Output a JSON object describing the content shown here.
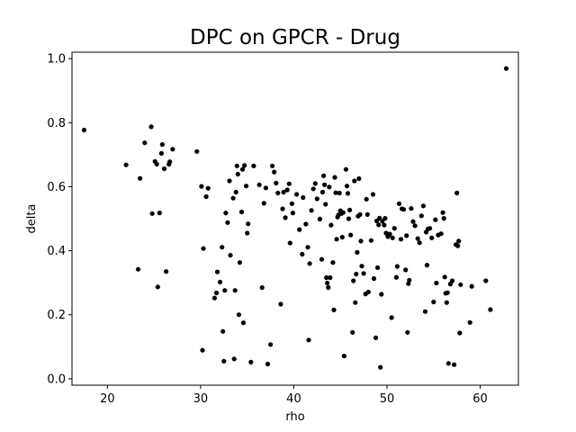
{
  "chart_data": {
    "type": "scatter",
    "title": "DPC on GPCR - Drug",
    "xlabel": "rho",
    "ylabel": "delta",
    "xlim": [
      16.2,
      64.1
    ],
    "ylim": [
      -0.02,
      1.02
    ],
    "xticks": [
      "20",
      "30",
      "40",
      "50",
      "60"
    ],
    "yticks": [
      "0.0",
      "0.2",
      "0.4",
      "0.6",
      "0.8",
      "1.0"
    ],
    "grid": false,
    "marker_color": "#000000",
    "points": [
      [
        17.5,
        0.777
      ],
      [
        22.0,
        0.668
      ],
      [
        23.3,
        0.342
      ],
      [
        23.5,
        0.626
      ],
      [
        24.0,
        0.737
      ],
      [
        24.7,
        0.787
      ],
      [
        24.8,
        0.516
      ],
      [
        25.1,
        0.679
      ],
      [
        25.3,
        0.67
      ],
      [
        25.4,
        0.287
      ],
      [
        25.6,
        0.518
      ],
      [
        25.8,
        0.704
      ],
      [
        25.9,
        0.732
      ],
      [
        26.1,
        0.656
      ],
      [
        26.3,
        0.335
      ],
      [
        26.6,
        0.67
      ],
      [
        26.7,
        0.678
      ],
      [
        27.0,
        0.717
      ],
      [
        29.6,
        0.71
      ],
      [
        30.1,
        0.601
      ],
      [
        30.2,
        0.089
      ],
      [
        30.3,
        0.407
      ],
      [
        30.6,
        0.569
      ],
      [
        30.8,
        0.595
      ],
      [
        31.5,
        0.252
      ],
      [
        31.7,
        0.268
      ],
      [
        31.8,
        0.334
      ],
      [
        32.1,
        0.302
      ],
      [
        32.3,
        0.411
      ],
      [
        32.4,
        0.148
      ],
      [
        32.5,
        0.055
      ],
      [
        32.6,
        0.276
      ],
      [
        32.7,
        0.518
      ],
      [
        32.9,
        0.488
      ],
      [
        33.1,
        0.618
      ],
      [
        33.2,
        0.386
      ],
      [
        33.5,
        0.564
      ],
      [
        33.6,
        0.062
      ],
      [
        33.7,
        0.276
      ],
      [
        33.8,
        0.583
      ],
      [
        33.9,
        0.665
      ],
      [
        34.0,
        0.639
      ],
      [
        34.1,
        0.2
      ],
      [
        34.2,
        0.363
      ],
      [
        34.4,
        0.521
      ],
      [
        34.5,
        0.654
      ],
      [
        34.6,
        0.175
      ],
      [
        34.7,
        0.666
      ],
      [
        34.9,
        0.602
      ],
      [
        35.0,
        0.455
      ],
      [
        35.1,
        0.484
      ],
      [
        35.4,
        0.052
      ],
      [
        35.7,
        0.665
      ],
      [
        36.3,
        0.606
      ],
      [
        36.6,
        0.285
      ],
      [
        36.8,
        0.548
      ],
      [
        37.0,
        0.596
      ],
      [
        37.2,
        0.046
      ],
      [
        37.5,
        0.107
      ],
      [
        37.7,
        0.665
      ],
      [
        37.9,
        0.646
      ],
      [
        38.1,
        0.611
      ],
      [
        38.3,
        0.58
      ],
      [
        38.6,
        0.233
      ],
      [
        38.8,
        0.531
      ],
      [
        38.9,
        0.583
      ],
      [
        39.1,
        0.503
      ],
      [
        39.3,
        0.59
      ],
      [
        39.5,
        0.609
      ],
      [
        39.6,
        0.424
      ],
      [
        39.8,
        0.547
      ],
      [
        39.9,
        0.518
      ],
      [
        40.3,
        0.576
      ],
      [
        40.6,
        0.466
      ],
      [
        40.9,
        0.389
      ],
      [
        41.0,
        0.566
      ],
      [
        41.3,
        0.483
      ],
      [
        41.5,
        0.411
      ],
      [
        41.6,
        0.121
      ],
      [
        41.7,
        0.36
      ],
      [
        41.9,
        0.526
      ],
      [
        42.1,
        0.593
      ],
      [
        42.3,
        0.61
      ],
      [
        42.5,
        0.562
      ],
      [
        42.8,
        0.499
      ],
      [
        43.0,
        0.373
      ],
      [
        43.1,
        0.583
      ],
      [
        43.2,
        0.634
      ],
      [
        43.3,
        0.606
      ],
      [
        43.4,
        0.545
      ],
      [
        43.5,
        0.316
      ],
      [
        43.6,
        0.299
      ],
      [
        43.7,
        0.285
      ],
      [
        43.8,
        0.599
      ],
      [
        43.9,
        0.316
      ],
      [
        44.0,
        0.48
      ],
      [
        44.2,
        0.363
      ],
      [
        44.3,
        0.215
      ],
      [
        44.4,
        0.629
      ],
      [
        44.5,
        0.581
      ],
      [
        44.6,
        0.436
      ],
      [
        44.7,
        0.505
      ],
      [
        44.8,
        0.512
      ],
      [
        44.9,
        0.58
      ],
      [
        45.0,
        0.525
      ],
      [
        45.1,
        0.516
      ],
      [
        45.2,
        0.442
      ],
      [
        45.3,
        0.519
      ],
      [
        45.4,
        0.071
      ],
      [
        45.6,
        0.654
      ],
      [
        45.7,
        0.602
      ],
      [
        45.8,
        0.579
      ],
      [
        45.9,
        0.5
      ],
      [
        46.0,
        0.527
      ],
      [
        46.1,
        0.449
      ],
      [
        46.3,
        0.145
      ],
      [
        46.4,
        0.306
      ],
      [
        46.5,
        0.618
      ],
      [
        46.6,
        0.238
      ],
      [
        46.7,
        0.327
      ],
      [
        46.8,
        0.395
      ],
      [
        46.9,
        0.508
      ],
      [
        47.0,
        0.625
      ],
      [
        47.1,
        0.513
      ],
      [
        47.2,
        0.43
      ],
      [
        47.3,
        0.352
      ],
      [
        47.5,
        0.329
      ],
      [
        47.7,
        0.265
      ],
      [
        47.8,
        0.561
      ],
      [
        47.9,
        0.513
      ],
      [
        48.0,
        0.271
      ],
      [
        48.3,
        0.432
      ],
      [
        48.5,
        0.576
      ],
      [
        48.6,
        0.313
      ],
      [
        48.8,
        0.128
      ],
      [
        48.9,
        0.493
      ],
      [
        49.0,
        0.347
      ],
      [
        49.1,
        0.481
      ],
      [
        49.2,
        0.502
      ],
      [
        49.3,
        0.036
      ],
      [
        49.4,
        0.264
      ],
      [
        49.5,
        0.492
      ],
      [
        49.7,
        0.48
      ],
      [
        49.8,
        0.501
      ],
      [
        49.9,
        0.455
      ],
      [
        50.1,
        0.444
      ],
      [
        50.3,
        0.452
      ],
      [
        50.5,
        0.191
      ],
      [
        50.6,
        0.44
      ],
      [
        50.8,
        0.47
      ],
      [
        51.0,
        0.317
      ],
      [
        51.1,
        0.351
      ],
      [
        51.3,
        0.547
      ],
      [
        51.5,
        0.436
      ],
      [
        51.6,
        0.531
      ],
      [
        51.8,
        0.529
      ],
      [
        52.0,
        0.34
      ],
      [
        52.1,
        0.447
      ],
      [
        52.2,
        0.145
      ],
      [
        52.3,
        0.297
      ],
      [
        52.4,
        0.308
      ],
      [
        52.6,
        0.532
      ],
      [
        52.8,
        0.491
      ],
      [
        53.0,
        0.478
      ],
      [
        53.3,
        0.438
      ],
      [
        53.5,
        0.425
      ],
      [
        53.7,
        0.509
      ],
      [
        53.9,
        0.54
      ],
      [
        54.1,
        0.21
      ],
      [
        54.2,
        0.458
      ],
      [
        54.3,
        0.355
      ],
      [
        54.4,
        0.468
      ],
      [
        54.6,
        0.47
      ],
      [
        54.8,
        0.44
      ],
      [
        55.0,
        0.24
      ],
      [
        55.2,
        0.497
      ],
      [
        55.3,
        0.299
      ],
      [
        55.5,
        0.449
      ],
      [
        55.8,
        0.453
      ],
      [
        56.0,
        0.519
      ],
      [
        56.1,
        0.501
      ],
      [
        56.2,
        0.318
      ],
      [
        56.3,
        0.267
      ],
      [
        56.4,
        0.238
      ],
      [
        56.5,
        0.269
      ],
      [
        56.6,
        0.048
      ],
      [
        56.8,
        0.296
      ],
      [
        57.0,
        0.306
      ],
      [
        57.2,
        0.044
      ],
      [
        57.4,
        0.419
      ],
      [
        57.5,
        0.58
      ],
      [
        57.6,
        0.415
      ],
      [
        57.7,
        0.43
      ],
      [
        57.8,
        0.143
      ],
      [
        57.9,
        0.294
      ],
      [
        58.9,
        0.176
      ],
      [
        59.1,
        0.289
      ],
      [
        60.6,
        0.306
      ],
      [
        61.1,
        0.216
      ],
      [
        62.8,
        0.969
      ]
    ]
  }
}
